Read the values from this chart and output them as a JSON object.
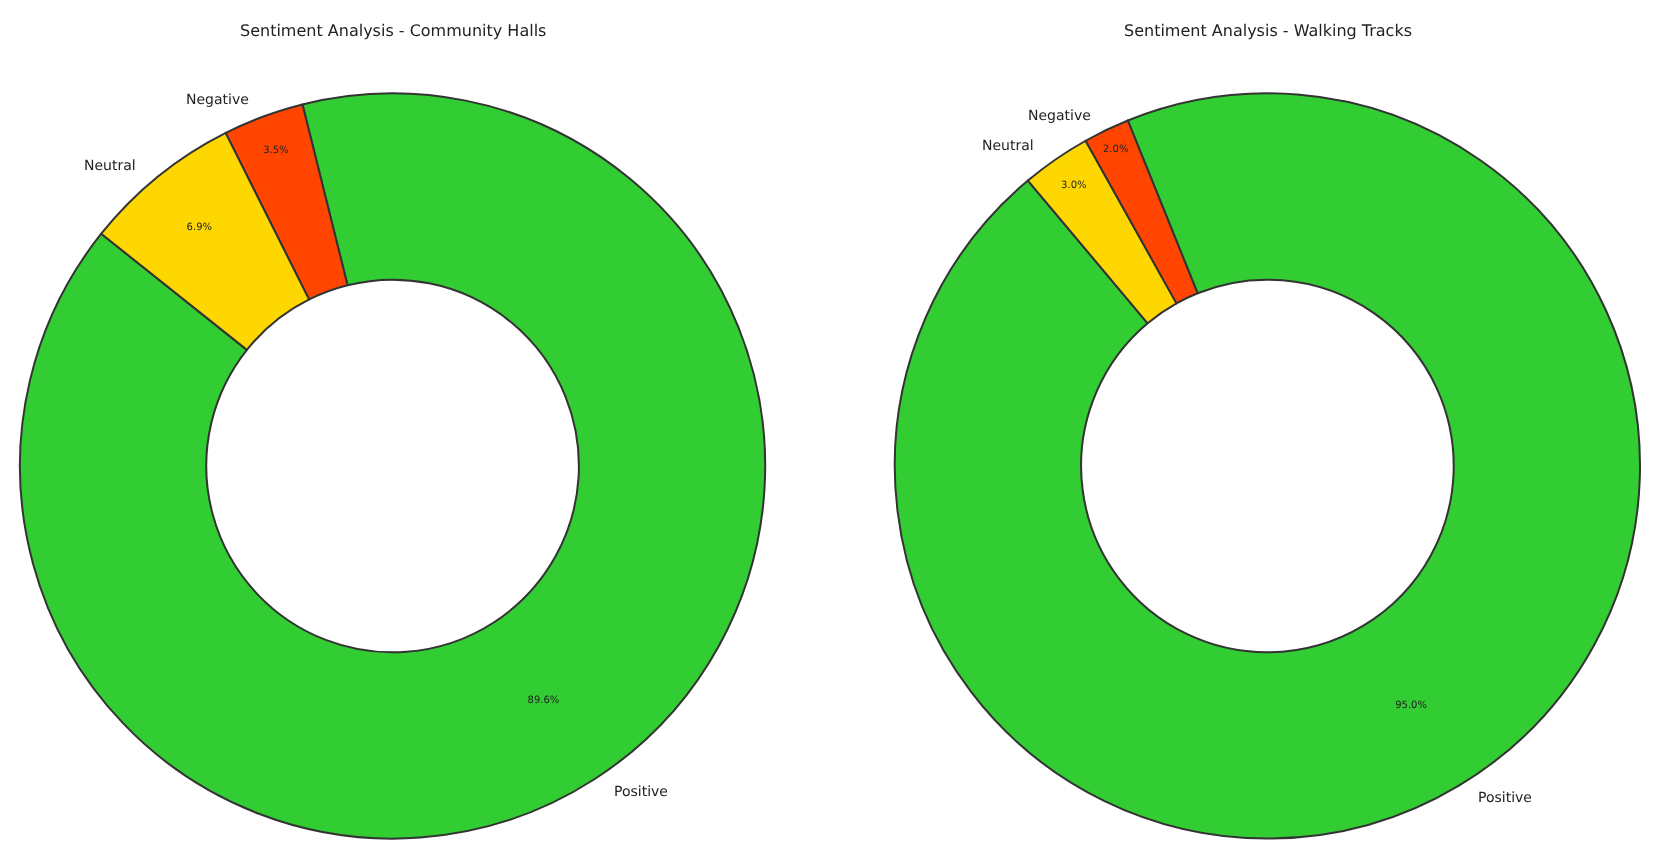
{
  "chart_data": [
    {
      "type": "donut",
      "title": "Sentiment Analysis - Community Halls",
      "categories": [
        "Positive",
        "Neutral",
        "Negative"
      ],
      "values": [
        89.6,
        6.9,
        3.5
      ],
      "value_labels": [
        "89.6%",
        "6.9%",
        "3.5%"
      ],
      "colors": [
        "#32cd32",
        "#ffd700",
        "#ff4500"
      ]
    },
    {
      "type": "donut",
      "title": "Sentiment Analysis - Walking Tracks",
      "categories": [
        "Positive",
        "Neutral",
        "Negative"
      ],
      "values": [
        95.0,
        3.0,
        2.0
      ],
      "value_labels": [
        "95.0%",
        "3.0%",
        "2.0%"
      ],
      "colors": [
        "#32cd32",
        "#ffd700",
        "#ff4500"
      ]
    }
  ]
}
